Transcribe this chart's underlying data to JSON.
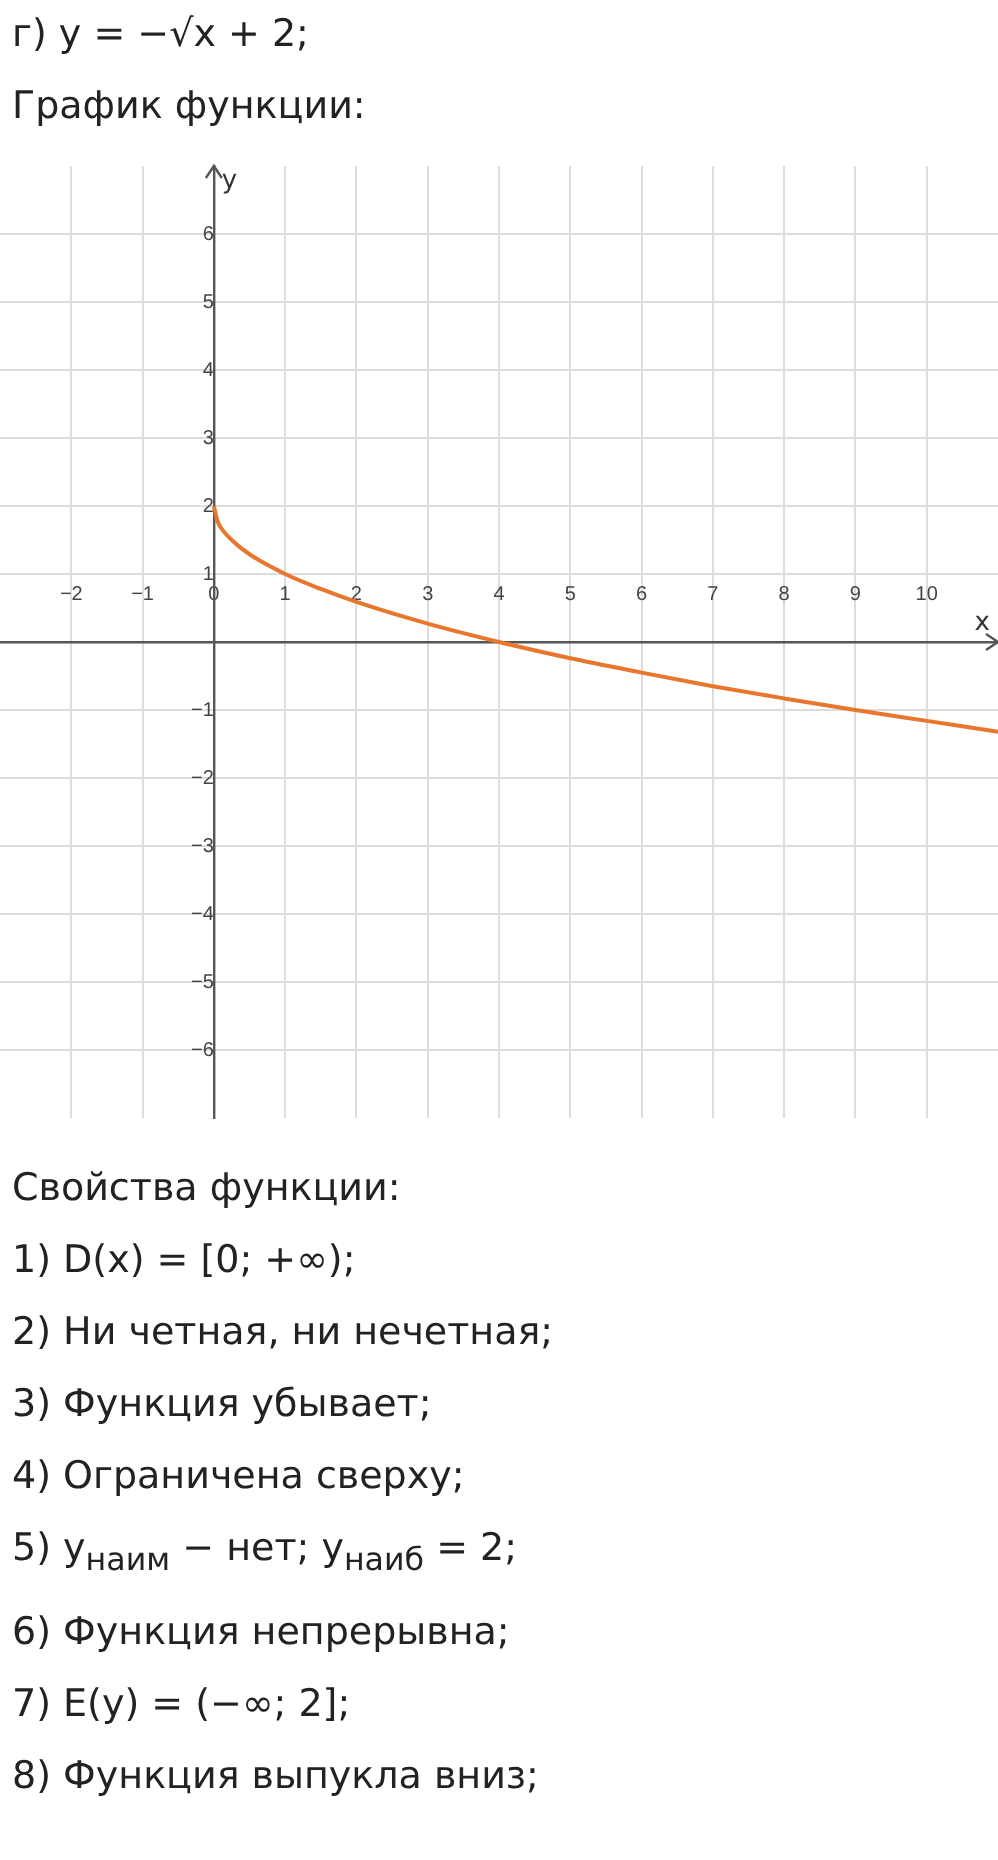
{
  "chart_data": {
    "type": "line",
    "title": "г) y = −√x + 2;",
    "subtitle": "График функции:",
    "xlabel": "x",
    "ylabel": "y",
    "x": [
      0,
      0.05,
      0.1,
      0.25,
      0.5,
      1,
      1.5,
      2,
      3,
      4,
      5,
      6,
      7,
      8,
      9,
      10,
      11
    ],
    "series": [
      {
        "color": "#e8762d",
        "values": [
          2,
          1.78,
          1.68,
          1.5,
          1.29,
          1,
          0.78,
          0.59,
          0.27,
          0,
          -0.24,
          -0.45,
          -0.65,
          -0.83,
          -1,
          -1.16,
          -1.32
        ]
      }
    ],
    "xlim": [
      -3,
      11
    ],
    "ylim": [
      -7,
      7
    ],
    "xticks": [
      -2,
      -1,
      0,
      1,
      2,
      3,
      4,
      5,
      6,
      7,
      8,
      9,
      10
    ],
    "yticks": [
      -6,
      -5,
      -4,
      -3,
      -2,
      -1,
      {
        "value": 0,
        "label": null
      },
      1,
      2,
      3,
      4,
      5,
      6
    ],
    "grid": true,
    "legend": false,
    "marker": "none",
    "line_style": "solid",
    "annotations": [
      "Свойства функции:",
      "1) D(x) = [0; +∞);",
      "2) Ни четная, ни нечетная;",
      "3) Функция убывает;",
      "4) Ограничена сверху;",
      "5) y$_{наим}$ − нет; y$_{наиб}$ = 2;",
      "6) Функция непрерывна;",
      "7) E(y) = (−∞; 2];",
      "8) Функция выпукла вниз;"
    ]
  }
}
